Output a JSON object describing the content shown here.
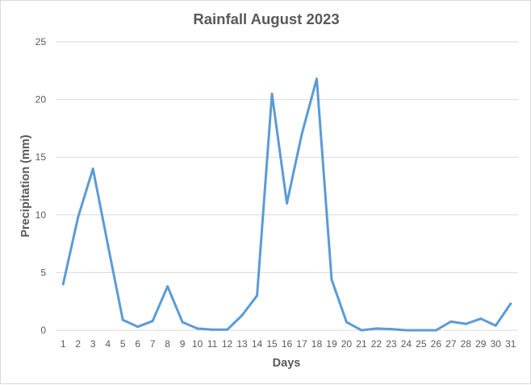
{
  "chart_data": {
    "type": "line",
    "title": "Rainfall August 2023",
    "xlabel": "Days",
    "ylabel": "Precipitation (mm)",
    "ylim": [
      0,
      25
    ],
    "yticks": [
      "0",
      "5",
      "10",
      "15",
      "20",
      "25"
    ],
    "grid": true,
    "legend": "none",
    "x": [
      "1",
      "2",
      "3",
      "4",
      "5",
      "6",
      "7",
      "8",
      "9",
      "10",
      "11",
      "12",
      "13",
      "14",
      "15",
      "16",
      "17",
      "18",
      "19",
      "20",
      "21",
      "22",
      "23",
      "24",
      "25",
      "26",
      "27",
      "28",
      "29",
      "30",
      "31"
    ],
    "series": [
      {
        "values": [
          4.0,
          9.8,
          14.0,
          7.4,
          0.9,
          0.3,
          0.8,
          3.8,
          0.7,
          0.15,
          0.05,
          0.05,
          1.3,
          3.0,
          20.5,
          11.0,
          17.0,
          21.8,
          4.4,
          0.7,
          0.0,
          0.15,
          0.1,
          0.0,
          0.0,
          0.0,
          0.75,
          0.55,
          1.0,
          0.4,
          2.3
        ],
        "color": "#5b9bd5"
      }
    ]
  }
}
